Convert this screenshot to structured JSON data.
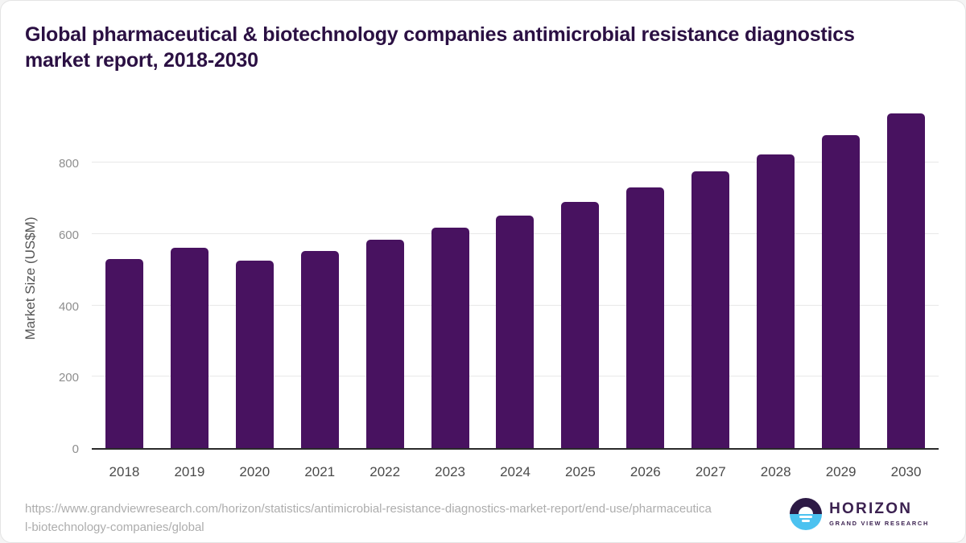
{
  "page": {
    "title_lines": [
      "Global pharmaceutical & biotechnology companies antimicrobial resistance diagnostics",
      "market report, 2018-2030"
    ]
  },
  "chart_data": {
    "type": "bar",
    "title": "Global pharmaceutical & biotechnology companies antimicrobial resistance diagnostics market report, 2018-2030",
    "categories": [
      "2018",
      "2019",
      "2020",
      "2021",
      "2022",
      "2023",
      "2024",
      "2025",
      "2026",
      "2027",
      "2028",
      "2029",
      "2030"
    ],
    "values": [
      530,
      562,
      526,
      552,
      585,
      617,
      652,
      690,
      731,
      775,
      823,
      877,
      937
    ],
    "xlabel": "",
    "ylabel": "Market Size (US$M)",
    "ylim": [
      0,
      965
    ],
    "yticks": [
      0,
      200,
      400,
      600,
      800
    ],
    "grid": true,
    "legend_position": "none",
    "bar_color": "#481260"
  },
  "footer": {
    "url": "https://www.grandviewresearch.com/horizon/statistics/antimicrobial-resistance-diagnostics-market-report/end-use/pharmaceutical-biotechnology-companies/global",
    "url_lines": [
      "https://www.grandviewresearch.com/horizon/statistics/antimicrobial-resistance-diagnostics-market-report/end-use/pharmaceutica",
      "l-biotechnology-companies/global"
    ]
  },
  "logo": {
    "brand": "HORIZON",
    "subtitle": "GRAND VIEW RESEARCH",
    "mark_icon": "horizon-sunset-icon",
    "colors": {
      "dark_purple": "#2d1a45",
      "light_blue": "#4cc2f0"
    }
  },
  "colors": {
    "title_text": "#2b1043",
    "bar": "#481260",
    "axis_line": "#2a2a2a",
    "gridline": "#e8e8e8",
    "ytick_text": "#8e8e8e",
    "xtick_text": "#4a4a4a",
    "ylabel_text": "#555555",
    "url_text": "#adadad"
  }
}
